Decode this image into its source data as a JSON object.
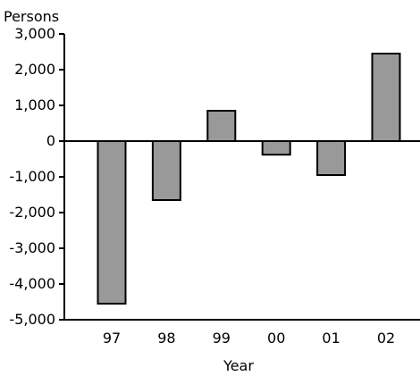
{
  "chart_data": {
    "type": "bar",
    "title": "",
    "ylabel": "Persons",
    "xlabel": "Year",
    "categories": [
      "97",
      "98",
      "99",
      "00",
      "01",
      "02"
    ],
    "values": [
      -4550,
      -1650,
      850,
      -380,
      -950,
      2450
    ],
    "ylim": [
      -5000,
      3000
    ],
    "yticks": [
      "3,000",
      "2,000",
      "1,000",
      "0",
      "-1,000",
      "-2,000",
      "-3,000",
      "-4,000",
      "-5,000"
    ],
    "ytick_values": [
      3000,
      2000,
      1000,
      0,
      -1000,
      -2000,
      -3000,
      -4000,
      -5000
    ],
    "grid": false,
    "bar_color": "#999999",
    "bar_edge_color": "#000000"
  }
}
